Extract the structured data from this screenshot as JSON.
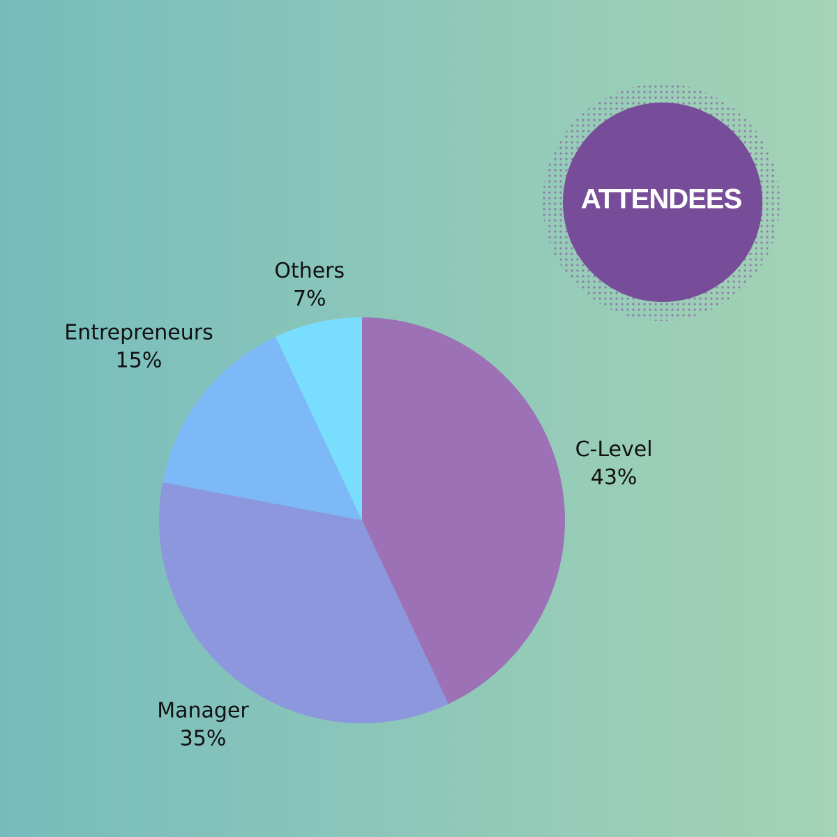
{
  "chart_data": {
    "type": "pie",
    "title": "ATTENDEES",
    "categories": [
      "C-Level",
      "Manager",
      "Entrepreneurs",
      "Others"
    ],
    "values": [
      43,
      35,
      15,
      7
    ],
    "value_labels": [
      "43%",
      "35%",
      "15%",
      "7%"
    ],
    "colors": [
      "#9c71b5",
      "#8c97dd",
      "#7cb9f6",
      "#79defd"
    ]
  }
}
